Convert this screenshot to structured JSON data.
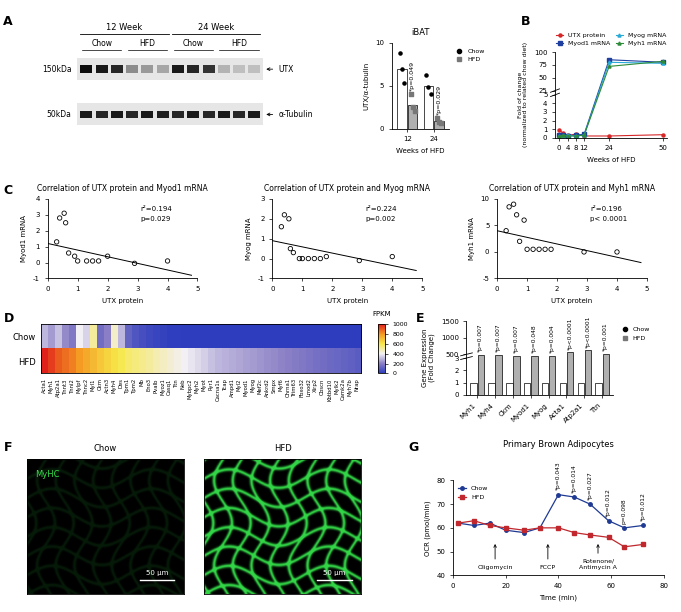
{
  "chart_data": [
    {
      "panel": "A",
      "type": "blot",
      "groups": [
        "12 Week",
        "24 Week"
      ],
      "lanes": [
        "Chow",
        "HFD",
        "Chow",
        "HFD"
      ],
      "markers": [
        "150kDa",
        "50kDa"
      ],
      "bands": [
        "UTX",
        "α-Tubulin"
      ]
    },
    {
      "type": "bar",
      "title": "iBAT",
      "xlabel": "Weeks of HFD",
      "ylabel": "UTX/α-tubulin",
      "categories": [
        "12",
        "24"
      ],
      "ylim": [
        0,
        10
      ],
      "yticks": [
        0,
        5,
        10
      ],
      "legend": "upper left",
      "series": [
        {
          "name": "Chow",
          "color": "#ffffff",
          "marker": "circle",
          "values": [
            7.0,
            5.0
          ],
          "points": [
            [
              8.8,
              7.0,
              5.3
            ],
            [
              6.2,
              4.8,
              4.0
            ]
          ]
        },
        {
          "name": "HFD",
          "color": "#b0b0b0",
          "marker": "square",
          "values": [
            2.8,
            0.9
          ],
          "points": [
            [
              4.0,
              2.5,
              2.0
            ],
            [
              1.2,
              0.8,
              0.7
            ]
          ],
          "p_labels": [
            "*p=0.049",
            "*p=0.029"
          ]
        }
      ]
    },
    {
      "panel": "B",
      "type": "line",
      "xlabel": "Weeks of HFD",
      "ylabel": "Fold of change\n(normalized to related chow diet)",
      "x": [
        0,
        2,
        4,
        8,
        12,
        24,
        50
      ],
      "xlim": [
        -2,
        52
      ],
      "xticks": [
        0,
        4,
        8,
        12,
        24,
        50
      ],
      "ylim": [
        0,
        100
      ],
      "yticks": [
        0,
        1,
        2,
        3,
        4,
        5,
        25,
        50,
        75,
        100
      ],
      "legend": "lower center",
      "series": [
        {
          "name": "UTX protein",
          "color": "#d62728",
          "marker": "circle",
          "values": [
            0.9,
            0.5,
            0.3,
            0.4,
            0.2,
            0.2,
            0.35
          ]
        },
        {
          "name": "Myod1 mRNA",
          "color": "#1f3fa0",
          "marker": "square",
          "values": [
            0.3,
            0.3,
            0.2,
            0.3,
            0.4,
            85,
            80
          ]
        },
        {
          "name": "Myog mRNA",
          "color": "#29a9d6",
          "marker": "triangle",
          "values": [
            0.2,
            0.2,
            0.3,
            0.2,
            0.3,
            80,
            78
          ]
        },
        {
          "name": "Myh1 mRNA",
          "color": "#2e8b3a",
          "marker": "triangle",
          "values": [
            0.2,
            0.3,
            0.2,
            0.2,
            0.3,
            72,
            82
          ]
        }
      ]
    },
    {
      "panel": "C",
      "type": "scatter",
      "xlabel": "UTX protein",
      "xlim": [
        0,
        5
      ],
      "xticks": [
        0,
        1,
        2,
        3,
        4,
        5
      ],
      "marker": "circle",
      "color": "#000000",
      "plots": [
        {
          "title": "Correlation of UTX protein and Myod1 mRNA",
          "ylabel": "Myod1 mRNA",
          "ylim": [
            -1,
            4
          ],
          "yticks": [
            -1,
            0,
            1,
            2,
            3,
            4
          ],
          "x": [
            0.3,
            0.4,
            0.55,
            0.6,
            0.7,
            0.9,
            1.0,
            1.3,
            1.5,
            1.7,
            2.0,
            2.9,
            4.0
          ],
          "y": [
            1.3,
            2.8,
            3.1,
            2.5,
            0.6,
            0.4,
            0.1,
            0.1,
            0.1,
            0.1,
            0.4,
            -0.05,
            0.1
          ],
          "fit": {
            "x": [
              0,
              4.8
            ],
            "y": [
              1.2,
              -0.8
            ]
          },
          "annotations": [
            "r²=0.194",
            "p=0.029"
          ]
        },
        {
          "title": "Correlation of UTX protein and Myog mRNA",
          "ylabel": "Myog mRNA",
          "ylim": [
            -1,
            3
          ],
          "yticks": [
            -1,
            0,
            1,
            2,
            3
          ],
          "x": [
            0.3,
            0.4,
            0.55,
            0.6,
            0.7,
            0.9,
            1.0,
            1.2,
            1.4,
            1.6,
            1.8,
            2.9,
            4.0
          ],
          "y": [
            1.6,
            2.2,
            2.0,
            0.5,
            0.3,
            0.0,
            0.0,
            0.0,
            0.0,
            0.0,
            0.1,
            -0.1,
            0.1
          ],
          "fit": {
            "x": [
              0,
              4.8
            ],
            "y": [
              0.9,
              -0.6
            ]
          },
          "annotations": [
            "r²=0.224",
            "p=0.002"
          ]
        },
        {
          "title": "Correlation of UTX protein and Myh1 mRNA",
          "ylabel": "Myh1 mRNA",
          "ylim": [
            -5,
            10
          ],
          "yticks": [
            -5,
            0,
            5,
            10
          ],
          "x": [
            0.3,
            0.4,
            0.55,
            0.65,
            0.75,
            0.9,
            1.0,
            1.2,
            1.4,
            1.6,
            1.8,
            2.9,
            4.0
          ],
          "y": [
            4,
            8.5,
            9,
            7,
            2,
            6,
            0.5,
            0.5,
            0.5,
            0.5,
            0.5,
            0,
            0
          ],
          "fit": {
            "x": [
              0,
              4.8
            ],
            "y": [
              4.0,
              -2.0
            ]
          },
          "annotations": [
            "r²=0.196",
            "p< 0.0001"
          ]
        }
      ]
    },
    {
      "panel": "D",
      "type": "heatmap",
      "rows": [
        "Chow",
        "HFD"
      ],
      "columns": [
        "Acta1",
        "Myh1",
        "Atp2a1",
        "Tnnt3",
        "Tnni2",
        "Mylpf",
        "Tnnc2",
        "Myl1",
        "Ckm",
        "Actn3",
        "Myh4",
        "Des",
        "Tpm1",
        "Tpm2",
        "Mb",
        "Eno3",
        "Pvalb",
        "Myoz1",
        "Casq1",
        "Ttn",
        "Neb",
        "Mybpc2",
        "Myh2",
        "Myot",
        "Ryr1",
        "Cacna1s",
        "Tcap",
        "Ampd1",
        "Myl2",
        "Myod1",
        "Myog",
        "Mef2c",
        "Ankrd2",
        "Smpx",
        "Myf6",
        "Chrna1",
        "Trim63",
        "Fbxo32",
        "Lmod2",
        "Xirp2",
        "Obscn",
        "Kbtbd10",
        "Mylk2",
        "Camk2a",
        "Myh7b",
        "Nrap"
      ],
      "cells": [
        [
          300,
          250,
          320,
          220,
          180,
          400,
          350,
          500,
          150,
          200,
          450,
          300,
          120,
          80,
          60,
          40,
          30,
          20,
          10,
          10,
          5,
          5,
          5,
          5,
          5,
          5,
          5,
          5,
          5,
          5,
          5,
          5,
          5,
          5,
          5,
          5,
          5,
          5,
          5,
          5,
          5,
          5,
          5,
          5,
          5,
          5
        ],
        [
          1000,
          950,
          900,
          870,
          840,
          800,
          760,
          720,
          680,
          650,
          620,
          590,
          560,
          540,
          520,
          500,
          480,
          460,
          440,
          420,
          400,
          380,
          360,
          340,
          320,
          300,
          290,
          280,
          270,
          260,
          250,
          240,
          230,
          220,
          210,
          200,
          190,
          180,
          170,
          160,
          150,
          140,
          130,
          120,
          110,
          100
        ]
      ],
      "colorbar_title": "FPKM",
      "colorbar_range": [
        0,
        1000
      ],
      "colorbar_ticks": [
        0,
        200,
        400,
        600,
        800,
        1000
      ]
    },
    {
      "panel": "E",
      "type": "bar",
      "ylabel": "Gene Expression\n(Fold Change)",
      "categories": [
        "Myh1",
        "Myh4",
        "Ckm",
        "Myod1",
        "Myog",
        "Acta1",
        "Atp2a1",
        "Ttn"
      ],
      "ylim": [
        0,
        1500
      ],
      "yticks": [
        0,
        1,
        2,
        3,
        500,
        1000,
        1500
      ],
      "legend": "upper left",
      "series": [
        {
          "name": "Chow",
          "color": "#ffffff",
          "marker": "circle",
          "values": [
            1,
            1,
            1,
            1,
            1,
            1,
            1,
            1
          ]
        },
        {
          "name": "HFD",
          "color": "#b0b0b0",
          "marker": "square",
          "values": [
            420,
            380,
            260,
            330,
            250,
            560,
            620,
            520
          ],
          "p_labels": [
            "*p=0.007",
            "*p=0.007",
            "*p=0.007",
            "*p=0.048",
            "*p=0.004",
            "*p<0.0001",
            "*p<0.0001",
            "*p=0.001"
          ]
        }
      ]
    },
    {
      "panel": "F",
      "type": "image",
      "images": [
        "Chow",
        "HFD"
      ],
      "stain": "MyHC",
      "scale_bar": "50 μm"
    },
    {
      "panel": "G",
      "type": "line",
      "title": "Primary Brown Adipocytes",
      "xlabel": "Time (min)",
      "ylabel": "OCR (pmol/min)",
      "x": [
        2,
        8,
        14,
        20,
        27,
        33,
        40,
        46,
        52,
        59,
        65,
        72
      ],
      "xlim": [
        0,
        80
      ],
      "xticks": [
        0,
        20,
        40,
        60,
        80
      ],
      "ylim": [
        40,
        80
      ],
      "yticks": [
        40,
        50,
        60,
        70,
        80
      ],
      "legend": "upper left",
      "p_labels": [
        null,
        null,
        null,
        null,
        null,
        null,
        "*p=0.043",
        "*p=0.014",
        "*p=0.027",
        "*p=0.012",
        "p=0.098",
        "*p=0.012"
      ],
      "injections": [
        {
          "x": 16,
          "label": "Oligomycin"
        },
        {
          "x": 36,
          "label": "FCCP"
        },
        {
          "x": 55,
          "label": "Rotenone/\nAntimycin A"
        }
      ],
      "series": [
        {
          "name": "Chow",
          "color": "#1f3a93",
          "marker": "circle",
          "values": [
            62,
            61,
            62,
            59,
            58,
            60,
            74,
            73,
            70,
            63,
            60,
            61
          ]
        },
        {
          "name": "HFD",
          "color": "#c0282d",
          "marker": "square",
          "values": [
            62,
            63,
            61,
            60,
            59,
            60,
            60,
            58,
            57,
            56,
            52,
            53
          ]
        }
      ]
    }
  ]
}
